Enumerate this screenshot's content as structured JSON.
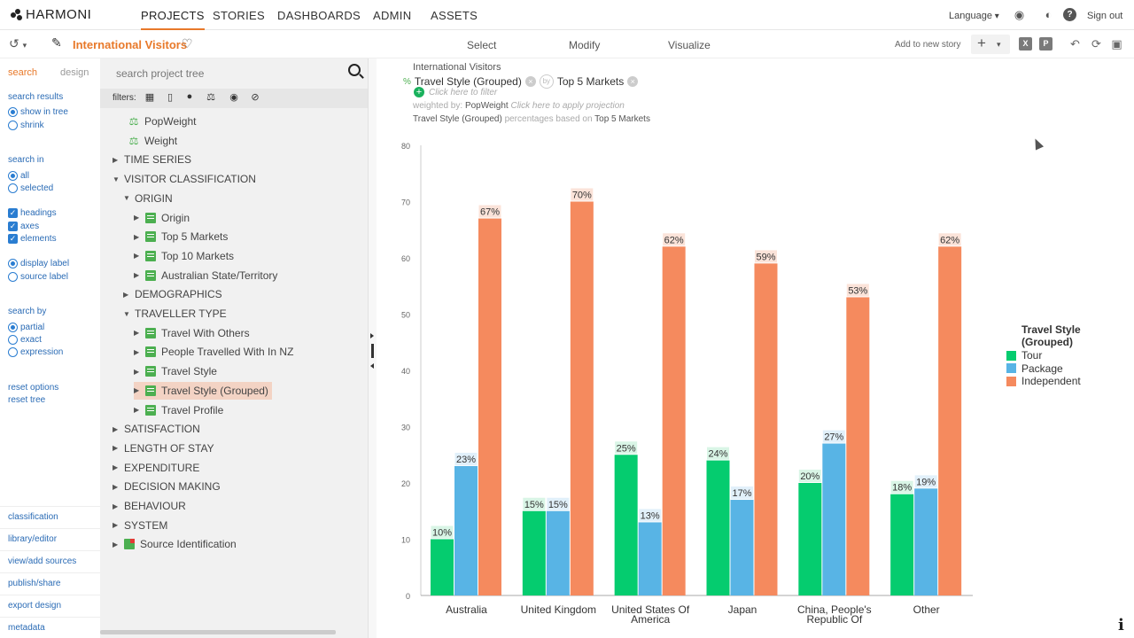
{
  "brand": "HARMONI",
  "nav": {
    "tabs": [
      "PROJECTS",
      "STORIES",
      "DASHBOARDS",
      "ADMIN",
      "ASSETS"
    ],
    "active": "PROJECTS",
    "language": "Language",
    "sign_out": "Sign out"
  },
  "project": {
    "title": "International Visitors",
    "modes": [
      "Select",
      "Modify",
      "Visualize"
    ],
    "add_to_story": "Add to new story"
  },
  "left_panel": {
    "tab_search": "search",
    "tab_design": "design",
    "search_results": {
      "label": "search results",
      "options": [
        "show in tree",
        "shrink"
      ],
      "selected": "show in tree"
    },
    "search_in": {
      "label": "search in",
      "options": [
        "all",
        "selected"
      ],
      "selected": "all"
    },
    "elements": {
      "options": [
        "headings",
        "axes",
        "elements"
      ],
      "checked": [
        "headings",
        "axes",
        "elements"
      ]
    },
    "label_type": {
      "options": [
        "display label",
        "source label"
      ],
      "selected": "display label"
    },
    "search_by": {
      "label": "search by",
      "options": [
        "partial",
        "exact",
        "expression"
      ],
      "selected": "partial"
    },
    "reset_options": "reset options",
    "reset_tree": "reset tree",
    "bottom_links": [
      "classification",
      "library/editor",
      "view/add sources",
      "publish/share",
      "export design",
      "metadata"
    ]
  },
  "tree": {
    "search_placeholder": "search project tree",
    "filters_label": "filters:",
    "items": [
      {
        "label": "PopWeight",
        "kind": "weight"
      },
      {
        "label": "Weight",
        "kind": "weight"
      },
      {
        "label": "TIME SERIES",
        "kind": "folder",
        "open": false
      },
      {
        "label": "VISITOR CLASSIFICATION",
        "kind": "folder",
        "open": true
      },
      {
        "label": "ORIGIN",
        "kind": "folder",
        "open": true
      },
      {
        "label": "Origin",
        "kind": "var"
      },
      {
        "label": "Top 5 Markets",
        "kind": "var"
      },
      {
        "label": "Top 10 Markets",
        "kind": "var"
      },
      {
        "label": "Australian State/Territory",
        "kind": "var"
      },
      {
        "label": "DEMOGRAPHICS",
        "kind": "folder",
        "open": false
      },
      {
        "label": "TRAVELLER TYPE",
        "kind": "folder",
        "open": true
      },
      {
        "label": "Travel With Others",
        "kind": "var"
      },
      {
        "label": "People Travelled With In NZ",
        "kind": "var"
      },
      {
        "label": "Travel Style",
        "kind": "var"
      },
      {
        "label": "Travel Style (Grouped)",
        "kind": "var",
        "selected": true
      },
      {
        "label": "Travel Profile",
        "kind": "var"
      },
      {
        "label": "SATISFACTION",
        "kind": "folder",
        "open": false
      },
      {
        "label": "LENGTH OF STAY",
        "kind": "folder",
        "open": false
      },
      {
        "label": "EXPENDITURE",
        "kind": "folder",
        "open": false
      },
      {
        "label": "DECISION MAKING",
        "kind": "folder",
        "open": false
      },
      {
        "label": "BEHAVIOUR",
        "kind": "folder",
        "open": false
      },
      {
        "label": "SYSTEM",
        "kind": "folder",
        "open": false
      },
      {
        "label": "Source Identification",
        "kind": "source"
      }
    ]
  },
  "table_header": {
    "dataset": "International Visitors",
    "pct_symbol": "%",
    "row_var": "Travel Style (Grouped)",
    "by": "by",
    "col_var": "Top 5 Markets",
    "filter_hint": "Click here to filter",
    "weighted_by_label": "weighted by:",
    "weight": "PopWeight",
    "projection_hint": "Click here to apply projection",
    "pct_note_var": "Travel Style (Grouped)",
    "pct_note_text": "percentages based on",
    "pct_note_base": "Top 5 Markets"
  },
  "colors": {
    "tour": "#05cc6f",
    "package": "#58b4e5",
    "independent": "#f58a5e",
    "accent": "#e8792a"
  },
  "chart_data": {
    "type": "bar",
    "categories": [
      "Australia",
      "United Kingdom",
      "United States Of America",
      "Japan",
      "China, People's Republic Of",
      "Other"
    ],
    "category_lines": [
      [
        "Australia"
      ],
      [
        "United Kingdom"
      ],
      [
        "United States Of",
        "America"
      ],
      [
        "Japan"
      ],
      [
        "China, People's",
        "Republic Of"
      ],
      [
        "Other"
      ]
    ],
    "series": [
      {
        "name": "Tour",
        "values": [
          10,
          15,
          25,
          24,
          20,
          18
        ],
        "labels": [
          "10%",
          "15%",
          "25%",
          "24%",
          "20%",
          "18%"
        ]
      },
      {
        "name": "Package",
        "values": [
          23,
          15,
          13,
          17,
          27,
          19
        ],
        "labels": [
          "23%",
          "15%",
          "13%",
          "17%",
          "27%",
          "19%"
        ]
      },
      {
        "name": "Independent",
        "values": [
          67,
          70,
          62,
          59,
          53,
          62
        ],
        "labels": [
          "67%",
          "70%",
          "62%",
          "59%",
          "53%",
          "62%"
        ]
      }
    ],
    "yticks": [
      "0",
      "10",
      "20",
      "30",
      "40",
      "50",
      "60",
      "70",
      "80"
    ],
    "ylim": [
      0,
      80
    ],
    "legend_title": "Travel Style (Grouped)",
    "legend_position": "right",
    "grid": false
  }
}
